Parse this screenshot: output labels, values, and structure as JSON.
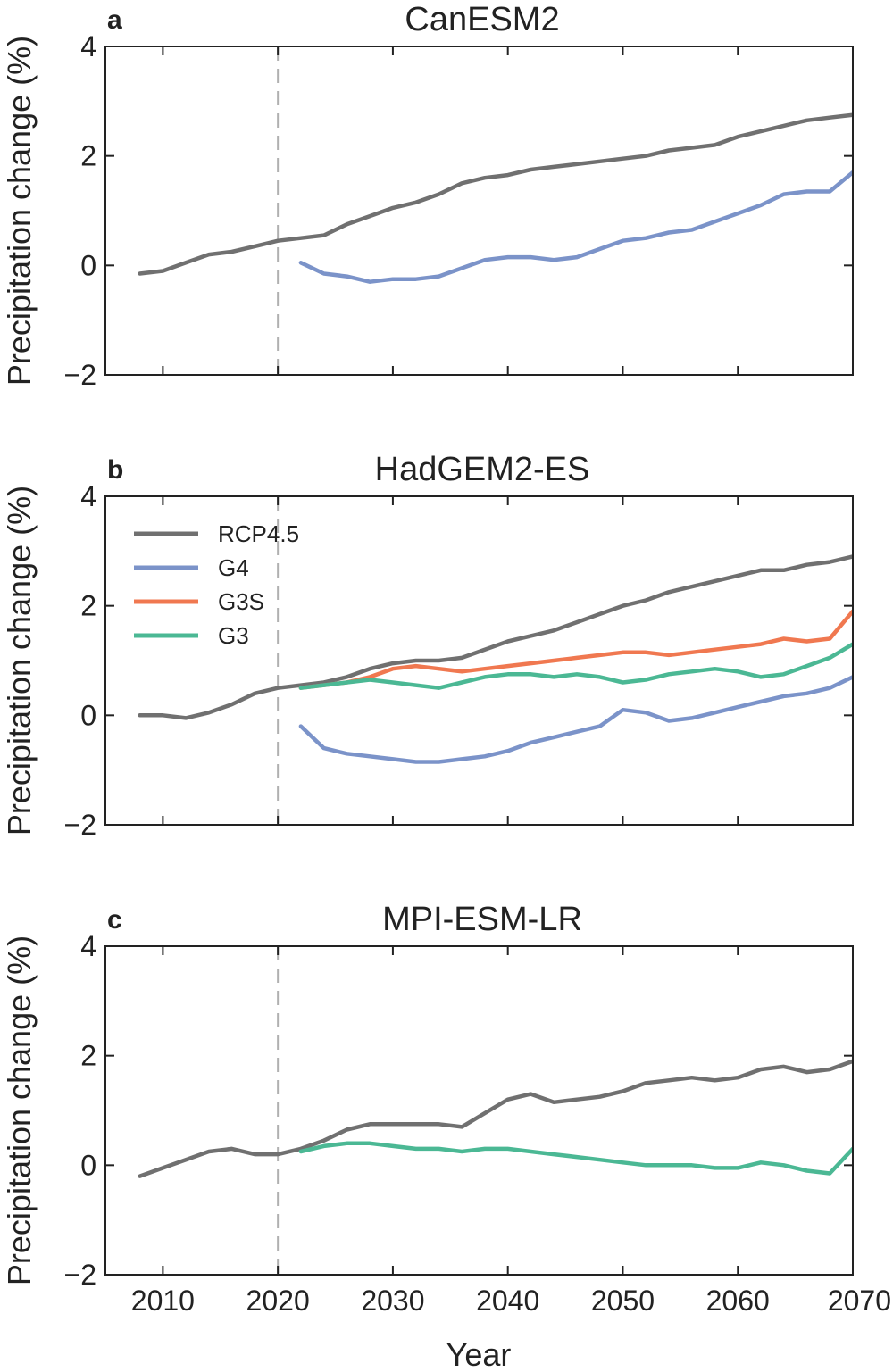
{
  "figure": {
    "ylabel": "Precipitation change (%)",
    "xlabel": "Year"
  },
  "colors": {
    "RCP4.5": "#707070",
    "G4": "#7b93c9",
    "G3S": "#f07850",
    "G3": "#4bb894"
  },
  "legend": {
    "position": "top-left",
    "panel": 1,
    "entries": [
      "RCP4.5",
      "G4",
      "G3S",
      "G3"
    ]
  },
  "chart_data": [
    {
      "type": "line",
      "letter": "a",
      "title": "CanESM2",
      "xlim": [
        2005,
        2070
      ],
      "ylim": [
        -2,
        4
      ],
      "xticks": [
        2010,
        2020,
        2030,
        2040,
        2050,
        2060,
        2070
      ],
      "yticks": [
        -2,
        0,
        2,
        4
      ],
      "vline": 2020,
      "series": [
        {
          "name": "RCP4.5",
          "x": [
            2008,
            2010,
            2012,
            2014,
            2016,
            2018,
            2020,
            2022,
            2024,
            2026,
            2028,
            2030,
            2032,
            2034,
            2036,
            2038,
            2040,
            2042,
            2044,
            2046,
            2048,
            2050,
            2052,
            2054,
            2056,
            2058,
            2060,
            2062,
            2064,
            2066,
            2068,
            2070
          ],
          "y": [
            -0.15,
            -0.1,
            0.05,
            0.2,
            0.25,
            0.35,
            0.45,
            0.5,
            0.55,
            0.75,
            0.9,
            1.05,
            1.15,
            1.3,
            1.5,
            1.6,
            1.65,
            1.75,
            1.8,
            1.85,
            1.9,
            1.95,
            2.0,
            2.1,
            2.15,
            2.2,
            2.35,
            2.45,
            2.55,
            2.65,
            2.7,
            2.75
          ]
        },
        {
          "name": "G4",
          "x": [
            2022,
            2024,
            2026,
            2028,
            2030,
            2032,
            2034,
            2036,
            2038,
            2040,
            2042,
            2044,
            2046,
            2048,
            2050,
            2052,
            2054,
            2056,
            2058,
            2060,
            2062,
            2064,
            2066,
            2068,
            2070
          ],
          "y": [
            0.05,
            -0.15,
            -0.2,
            -0.3,
            -0.25,
            -0.25,
            -0.2,
            -0.05,
            0.1,
            0.15,
            0.15,
            0.1,
            0.15,
            0.3,
            0.45,
            0.5,
            0.6,
            0.65,
            0.8,
            0.95,
            1.1,
            1.3,
            1.35,
            1.35,
            1.7
          ]
        }
      ]
    },
    {
      "type": "line",
      "letter": "b",
      "title": "HadGEM2-ES",
      "xlim": [
        2005,
        2070
      ],
      "ylim": [
        -2,
        4
      ],
      "xticks": [
        2010,
        2020,
        2030,
        2040,
        2050,
        2060,
        2070
      ],
      "yticks": [
        -2,
        0,
        2,
        4
      ],
      "vline": 2020,
      "series": [
        {
          "name": "RCP4.5",
          "x": [
            2008,
            2010,
            2012,
            2014,
            2016,
            2018,
            2020,
            2022,
            2024,
            2026,
            2028,
            2030,
            2032,
            2034,
            2036,
            2038,
            2040,
            2042,
            2044,
            2046,
            2048,
            2050,
            2052,
            2054,
            2056,
            2058,
            2060,
            2062,
            2064,
            2066,
            2068,
            2070
          ],
          "y": [
            0.0,
            0.0,
            -0.05,
            0.05,
            0.2,
            0.4,
            0.5,
            0.55,
            0.6,
            0.7,
            0.85,
            0.95,
            1.0,
            1.0,
            1.05,
            1.2,
            1.35,
            1.45,
            1.55,
            1.7,
            1.85,
            2.0,
            2.1,
            2.25,
            2.35,
            2.45,
            2.55,
            2.65,
            2.65,
            2.75,
            2.8,
            2.9
          ]
        },
        {
          "name": "G4",
          "x": [
            2022,
            2024,
            2026,
            2028,
            2030,
            2032,
            2034,
            2036,
            2038,
            2040,
            2042,
            2044,
            2046,
            2048,
            2050,
            2052,
            2054,
            2056,
            2058,
            2060,
            2062,
            2064,
            2066,
            2068,
            2070
          ],
          "y": [
            -0.2,
            -0.6,
            -0.7,
            -0.75,
            -0.8,
            -0.85,
            -0.85,
            -0.8,
            -0.75,
            -0.65,
            -0.5,
            -0.4,
            -0.3,
            -0.2,
            0.1,
            0.05,
            -0.1,
            -0.05,
            0.05,
            0.15,
            0.25,
            0.35,
            0.4,
            0.5,
            0.7
          ]
        },
        {
          "name": "G3S",
          "x": [
            2022,
            2024,
            2026,
            2028,
            2030,
            2032,
            2034,
            2036,
            2038,
            2040,
            2042,
            2044,
            2046,
            2048,
            2050,
            2052,
            2054,
            2056,
            2058,
            2060,
            2062,
            2064,
            2066,
            2068,
            2070
          ],
          "y": [
            0.5,
            0.55,
            0.6,
            0.7,
            0.85,
            0.9,
            0.85,
            0.8,
            0.85,
            0.9,
            0.95,
            1.0,
            1.05,
            1.1,
            1.15,
            1.15,
            1.1,
            1.15,
            1.2,
            1.25,
            1.3,
            1.4,
            1.35,
            1.4,
            1.9
          ]
        },
        {
          "name": "G3",
          "x": [
            2022,
            2024,
            2026,
            2028,
            2030,
            2032,
            2034,
            2036,
            2038,
            2040,
            2042,
            2044,
            2046,
            2048,
            2050,
            2052,
            2054,
            2056,
            2058,
            2060,
            2062,
            2064,
            2066,
            2068,
            2070
          ],
          "y": [
            0.5,
            0.55,
            0.6,
            0.65,
            0.6,
            0.55,
            0.5,
            0.6,
            0.7,
            0.75,
            0.75,
            0.7,
            0.75,
            0.7,
            0.6,
            0.65,
            0.75,
            0.8,
            0.85,
            0.8,
            0.7,
            0.75,
            0.9,
            1.05,
            1.3
          ]
        }
      ]
    },
    {
      "type": "line",
      "letter": "c",
      "title": "MPI-ESM-LR",
      "xlim": [
        2005,
        2070
      ],
      "ylim": [
        -2,
        4
      ],
      "xticks": [
        2010,
        2020,
        2030,
        2040,
        2050,
        2060,
        2070
      ],
      "yticks": [
        -2,
        0,
        2,
        4
      ],
      "xticklabels": [
        "2010",
        "2020",
        "2030",
        "2040",
        "2050",
        "2060",
        "2070"
      ],
      "vline": 2020,
      "series": [
        {
          "name": "RCP4.5",
          "x": [
            2008,
            2010,
            2012,
            2014,
            2016,
            2018,
            2020,
            2022,
            2024,
            2026,
            2028,
            2030,
            2032,
            2034,
            2036,
            2038,
            2040,
            2042,
            2044,
            2046,
            2048,
            2050,
            2052,
            2054,
            2056,
            2058,
            2060,
            2062,
            2064,
            2066,
            2068,
            2070
          ],
          "y": [
            -0.2,
            -0.05,
            0.1,
            0.25,
            0.3,
            0.2,
            0.2,
            0.3,
            0.45,
            0.65,
            0.75,
            0.75,
            0.75,
            0.75,
            0.7,
            0.95,
            1.2,
            1.3,
            1.15,
            1.2,
            1.25,
            1.35,
            1.5,
            1.55,
            1.6,
            1.55,
            1.6,
            1.75,
            1.8,
            1.7,
            1.75,
            1.9
          ]
        },
        {
          "name": "G3",
          "x": [
            2022,
            2024,
            2026,
            2028,
            2030,
            2032,
            2034,
            2036,
            2038,
            2040,
            2042,
            2044,
            2046,
            2048,
            2050,
            2052,
            2054,
            2056,
            2058,
            2060,
            2062,
            2064,
            2066,
            2068,
            2070
          ],
          "y": [
            0.25,
            0.35,
            0.4,
            0.4,
            0.35,
            0.3,
            0.3,
            0.25,
            0.3,
            0.3,
            0.25,
            0.2,
            0.15,
            0.1,
            0.05,
            0.0,
            0.0,
            0.0,
            -0.05,
            -0.05,
            0.05,
            0.0,
            -0.1,
            -0.15,
            0.3
          ]
        }
      ]
    }
  ]
}
